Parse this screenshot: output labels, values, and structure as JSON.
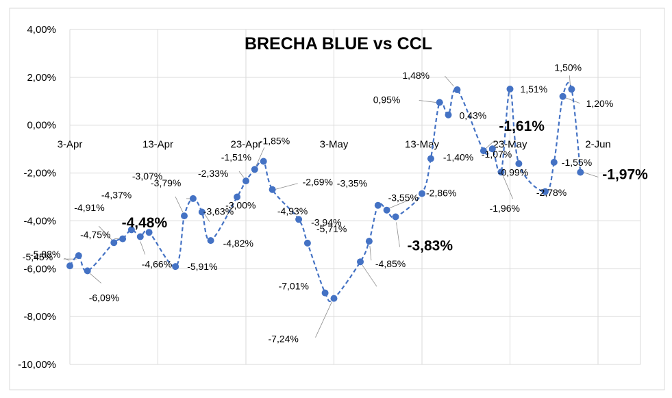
{
  "chart_data": {
    "type": "line",
    "title": "BRECHA BLUE vs CCL",
    "xlabel": "",
    "ylabel": "",
    "ylim": [
      -10,
      4
    ],
    "y_ticks": [
      4,
      2,
      0,
      -2,
      -4,
      -6,
      -8,
      -10
    ],
    "y_tick_labels": [
      "4,00%",
      "2,00%",
      "0,00%",
      "-2,00%",
      "-4,00%",
      "-6,00%",
      "-8,00%",
      "-10,00%"
    ],
    "x_tick_labels": [
      "3-Apr",
      "13-Apr",
      "23-Apr",
      "3-May",
      "13-May",
      "23-May",
      "2-Jun"
    ],
    "x_ticks": [
      "2021-04-03",
      "2021-04-13",
      "2021-04-23",
      "2021-05-03",
      "2021-05-13",
      "2021-05-23",
      "2021-06-02"
    ],
    "grid": true,
    "colors": {
      "series": "#4472c4",
      "grid": "#d9d9d9"
    },
    "series": [
      {
        "points": [
          {
            "x": "2021-04-03",
            "y": -5.88,
            "label": "-5,88%"
          },
          {
            "x": "2021-04-04",
            "y": -5.45,
            "label": "-5,45%"
          },
          {
            "x": "2021-04-05",
            "y": -6.09,
            "label": "-6,09%"
          },
          {
            "x": "2021-04-08",
            "y": -4.91,
            "label": "-4,91%"
          },
          {
            "x": "2021-04-09",
            "y": -4.75,
            "label": "-4,75%"
          },
          {
            "x": "2021-04-10",
            "y": -4.37,
            "label": "-4,37%"
          },
          {
            "x": "2021-04-11",
            "y": -4.66,
            "label": "-4,66%"
          },
          {
            "x": "2021-04-12",
            "y": -4.48,
            "label": "-4,48%",
            "emphasis": true
          },
          {
            "x": "2021-04-15",
            "y": -5.91,
            "label": "-5,91%"
          },
          {
            "x": "2021-04-16",
            "y": -3.79,
            "label": "-3,79%"
          },
          {
            "x": "2021-04-17",
            "y": -3.07,
            "label": "-3,07%"
          },
          {
            "x": "2021-04-18",
            "y": -3.63,
            "label": "-3,63%"
          },
          {
            "x": "2021-04-19",
            "y": -4.82,
            "label": "-4,82%"
          },
          {
            "x": "2021-04-22",
            "y": -3.0,
            "label": "-3,00%"
          },
          {
            "x": "2021-04-23",
            "y": -2.33,
            "label": "-2,33%"
          },
          {
            "x": "2021-04-24",
            "y": -1.85,
            "label": "-1,85%"
          },
          {
            "x": "2021-04-25",
            "y": -1.51,
            "label": "-1,51%"
          },
          {
            "x": "2021-04-26",
            "y": -2.69,
            "label": "-2,69%"
          },
          {
            "x": "2021-04-29",
            "y": -3.94,
            "label": "-3,94%"
          },
          {
            "x": "2021-04-30",
            "y": -4.93,
            "label": "-4,93%"
          },
          {
            "x": "2021-05-02",
            "y": -7.01,
            "label": "-7,01%"
          },
          {
            "x": "2021-05-03",
            "y": -7.24,
            "label": "-7,24%"
          },
          {
            "x": "2021-05-06",
            "y": -5.71,
            "label": "-5,71%"
          },
          {
            "x": "2021-05-07",
            "y": -4.85,
            "label": "-4,85%"
          },
          {
            "x": "2021-05-08",
            "y": -3.35,
            "label": "-3,35%"
          },
          {
            "x": "2021-05-09",
            "y": -3.55,
            "label": "-3,55%"
          },
          {
            "x": "2021-05-10",
            "y": -3.83,
            "label": "-3,83%",
            "emphasis": true
          },
          {
            "x": "2021-05-13",
            "y": -2.86,
            "label": "-2,86%"
          },
          {
            "x": "2021-05-14",
            "y": -1.4,
            "label": "-1,40%"
          },
          {
            "x": "2021-05-15",
            "y": 0.95,
            "label": "0,95%"
          },
          {
            "x": "2021-05-16",
            "y": 0.43,
            "label": "0,43%"
          },
          {
            "x": "2021-05-17",
            "y": 1.48,
            "label": "1,48%"
          },
          {
            "x": "2021-05-20",
            "y": -1.07,
            "label": "-1,07%"
          },
          {
            "x": "2021-05-21",
            "y": -0.99,
            "label": "-0,99%"
          },
          {
            "x": "2021-05-22",
            "y": -1.96,
            "label": "-1,96%"
          },
          {
            "x": "2021-05-23",
            "y": 1.51,
            "label": "1,51%"
          },
          {
            "x": "2021-05-24",
            "y": -1.61,
            "label": "-1,61%",
            "emphasis": true
          },
          {
            "x": "2021-05-27",
            "y": -2.78,
            "label": "-2,78%"
          },
          {
            "x": "2021-05-28",
            "y": -1.55,
            "label": "-1,55%"
          },
          {
            "x": "2021-05-29",
            "y": 1.2,
            "label": "1,20%"
          },
          {
            "x": "2021-05-30",
            "y": 1.5,
            "label": "1,50%"
          },
          {
            "x": "2021-05-31",
            "y": -1.97,
            "label": "-1,97%",
            "emphasis": true
          }
        ]
      }
    ]
  }
}
